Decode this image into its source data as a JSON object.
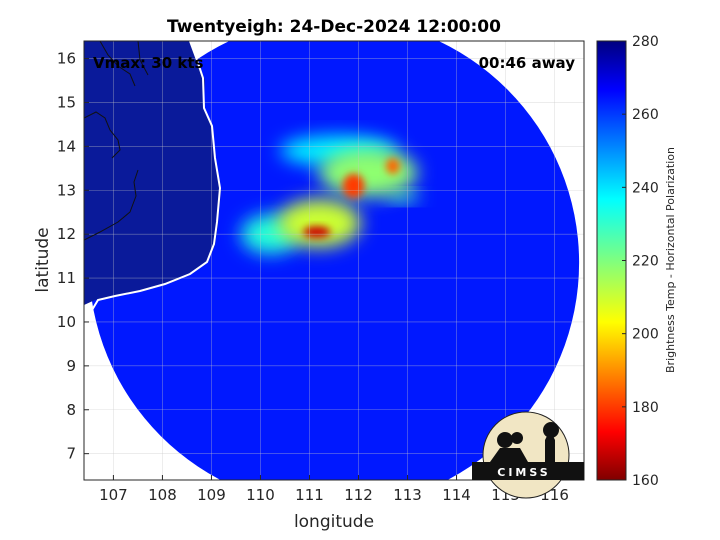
{
  "chart_data": {
    "type": "heatmap",
    "title": "Twentyeigh: 24-Dec-2024 12:00:00",
    "xlabel": "longitude",
    "ylabel": "latitude",
    "xlim": [
      106.4,
      116.6
    ],
    "ylim": [
      6.4,
      16.4
    ],
    "x_ticks": [
      107,
      108,
      109,
      110,
      111,
      112,
      113,
      114,
      115,
      116
    ],
    "y_ticks": [
      7,
      8,
      9,
      10,
      11,
      12,
      13,
      14,
      15,
      16
    ],
    "grid": true,
    "annotations": {
      "vmax": "Vmax: 30 kts",
      "time_offset": "00:46 away"
    },
    "colorbar": {
      "label": "Brightness Temp - Horizontal Polarization",
      "range": [
        160,
        280
      ],
      "ticks": [
        160,
        180,
        200,
        220,
        240,
        260,
        280
      ],
      "colormap": "jet"
    },
    "swath": {
      "center_lon": 111.5,
      "center_lat": 11.35,
      "radius_deg": 5.0,
      "background_value": 264
    },
    "features": [
      {
        "lon": 111.15,
        "lat": 12.05,
        "value": 168,
        "sx": 0.28,
        "sy": 0.13
      },
      {
        "lon": 111.9,
        "lat": 13.1,
        "value": 180,
        "sx": 0.22,
        "sy": 0.28
      },
      {
        "lon": 112.7,
        "lat": 13.55,
        "value": 185,
        "sx": 0.14,
        "sy": 0.18
      },
      {
        "lon": 111.2,
        "lat": 12.25,
        "value": 210,
        "sx": 0.85,
        "sy": 0.55
      },
      {
        "lon": 112.2,
        "lat": 13.4,
        "value": 218,
        "sx": 1.0,
        "sy": 0.55
      },
      {
        "lon": 112.9,
        "lat": 12.85,
        "value": 228,
        "sx": 0.35,
        "sy": 0.12
      },
      {
        "lon": 110.2,
        "lat": 12.0,
        "value": 232,
        "sx": 0.6,
        "sy": 0.45
      },
      {
        "lon": 111.6,
        "lat": 13.9,
        "value": 238,
        "sx": 1.2,
        "sy": 0.35
      }
    ],
    "logo_text": "CIMSS"
  }
}
